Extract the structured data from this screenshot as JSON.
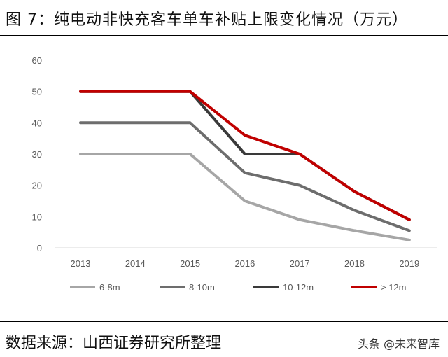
{
  "header": {
    "title": "图 7：纯电动非快充客车单车补贴上限变化情况（万元）"
  },
  "footer": {
    "source": "数据来源：山西证券研究所整理",
    "watermark": "头条 @未来智库"
  },
  "chart_data": {
    "type": "line",
    "x": [
      "2013",
      "2014",
      "2015",
      "2016",
      "2017",
      "2018",
      "2019"
    ],
    "ylim": [
      0,
      60
    ],
    "yticks": [
      0,
      10,
      20,
      30,
      40,
      50,
      60
    ],
    "grid": false,
    "legend_position": "bottom",
    "series": [
      {
        "name": "6-8m",
        "color": "#a6a6a6",
        "values": [
          30,
          30,
          30,
          15,
          9,
          5.5,
          2.5
        ]
      },
      {
        "name": "8-10m",
        "color": "#6d6d6d",
        "values": [
          40,
          40,
          40,
          24,
          20,
          12,
          5.5
        ]
      },
      {
        "name": "10-12m",
        "color": "#3a3a3a",
        "values": [
          50,
          50,
          50,
          30,
          30,
          18,
          9
        ]
      },
      {
        "name": "> 12m",
        "color": "#c00000",
        "values": [
          50,
          50,
          50,
          36,
          30,
          18,
          9
        ]
      }
    ]
  }
}
